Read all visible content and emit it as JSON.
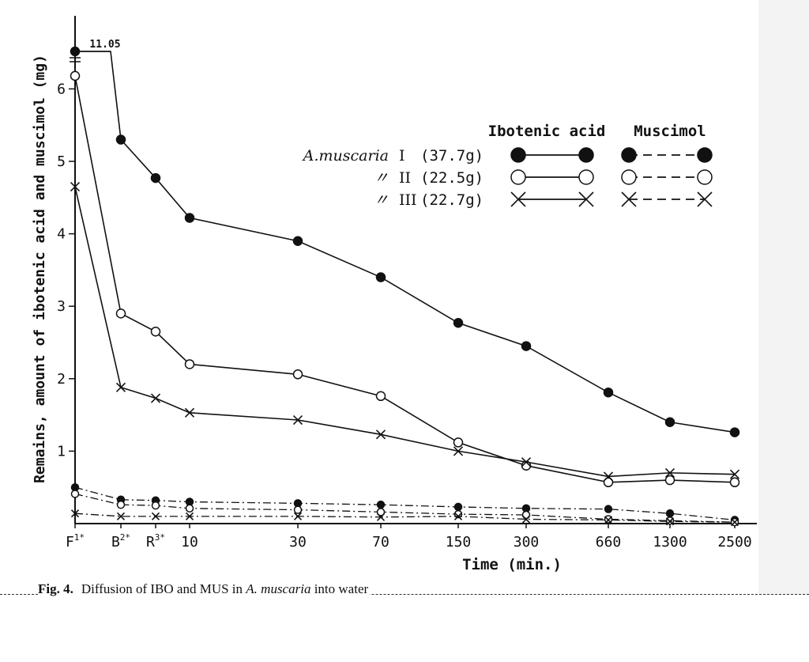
{
  "chart_data": {
    "type": "line",
    "ylabel": "Remains, amount of ibotenic acid and muscimol (mg)",
    "xlabel": "Time (min.)",
    "categories": [
      "F1*",
      "B2*",
      "R3*",
      "10",
      "30",
      "70",
      "150",
      "300",
      "660",
      "1300",
      "2500"
    ],
    "ylim": [
      0,
      6.5
    ],
    "yticks": [
      1,
      2,
      3,
      4,
      5,
      6
    ],
    "break_label": "11.05",
    "legend": {
      "ibotenic_header": "Ibotenic acid",
      "muscimol_header": "Muscimol",
      "rows": [
        {
          "species": "A.muscaria",
          "numeral": "I",
          "weight": "(37.7g)"
        },
        {
          "species": "〃",
          "numeral": "II",
          "weight": "(22.5g)"
        },
        {
          "species": "〃",
          "numeral": "III",
          "weight": "(22.7g)"
        }
      ]
    },
    "series": [
      {
        "sample": "I",
        "compound": "Ibotenic acid",
        "marker": "filled-circle",
        "line": "solid",
        "values": [
          11.05,
          5.3,
          4.77,
          4.22,
          3.9,
          3.4,
          2.77,
          2.45,
          1.81,
          1.4,
          1.26
        ]
      },
      {
        "sample": "II",
        "compound": "Ibotenic acid",
        "marker": "open-circle",
        "line": "solid",
        "values": [
          6.18,
          2.9,
          2.65,
          2.2,
          2.06,
          1.76,
          1.12,
          0.8,
          0.57,
          0.6,
          0.57
        ]
      },
      {
        "sample": "III",
        "compound": "Ibotenic acid",
        "marker": "cross",
        "line": "solid",
        "values": [
          4.65,
          1.88,
          1.73,
          1.53,
          1.43,
          1.23,
          1.0,
          0.85,
          0.65,
          0.7,
          0.68
        ]
      },
      {
        "sample": "I",
        "compound": "Muscimol",
        "marker": "filled-circle",
        "line": "dashed",
        "values": [
          0.5,
          0.33,
          0.32,
          0.3,
          0.28,
          0.26,
          0.23,
          0.21,
          0.2,
          0.14,
          0.05
        ]
      },
      {
        "sample": "II",
        "compound": "Muscimol",
        "marker": "open-circle",
        "line": "dashed",
        "values": [
          0.41,
          0.26,
          0.25,
          0.21,
          0.19,
          0.16,
          0.13,
          0.12,
          0.06,
          0.04,
          0.02
        ]
      },
      {
        "sample": "III",
        "compound": "Muscimol",
        "marker": "cross",
        "line": "dashed",
        "values": [
          0.14,
          0.1,
          0.1,
          0.1,
          0.1,
          0.09,
          0.1,
          0.06,
          0.05,
          0.03,
          0.02
        ]
      }
    ]
  },
  "caption": {
    "label": "Fig. 4.",
    "text": "Diffusion of IBO and MUS in A. muscaria into water"
  }
}
